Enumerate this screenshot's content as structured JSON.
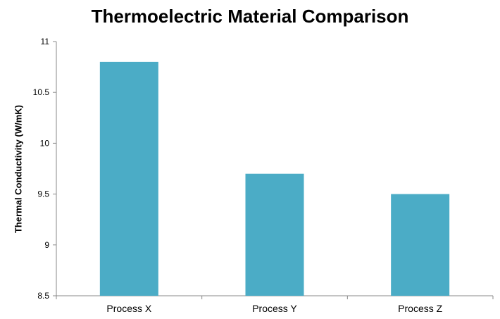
{
  "chart_data": {
    "type": "bar",
    "title": "Thermoelectric Material Comparison",
    "xlabel": "",
    "ylabel": "Thermal Conductivity (W/mK)",
    "categories": [
      "Process X",
      "Process Y",
      "Process Z"
    ],
    "values": [
      10.8,
      9.7,
      9.5
    ],
    "ylim": [
      8.5,
      11
    ],
    "yticks": [
      "8.5",
      "9",
      "9.5",
      "10",
      "10.5",
      "11"
    ],
    "bar_color": "#4BACC6",
    "grid": false,
    "legend": "none"
  }
}
